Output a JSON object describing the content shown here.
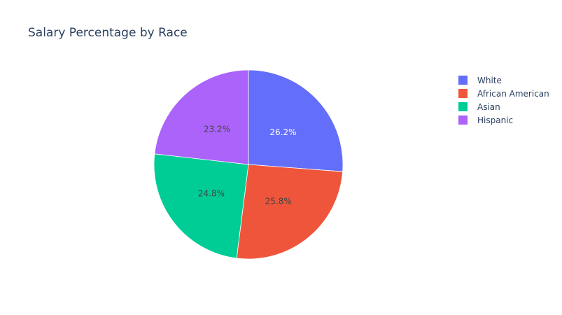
{
  "chart_data": {
    "type": "pie",
    "title": "Salary Percentage by Race",
    "labels": [
      "White",
      "African American",
      "Asian",
      "Hispanic"
    ],
    "values": [
      26.2,
      25.8,
      24.8,
      23.2
    ],
    "value_labels": [
      "26.2%",
      "25.8%",
      "24.8%",
      "23.2%"
    ],
    "colors": [
      "#636efa",
      "#EF553B",
      "#00cc96",
      "#ab63fa"
    ],
    "label_colors": [
      "#ffffff",
      "#444444",
      "#444444",
      "#444444"
    ],
    "legend_position": "top-right",
    "direction": "clockwise",
    "start": "top"
  }
}
